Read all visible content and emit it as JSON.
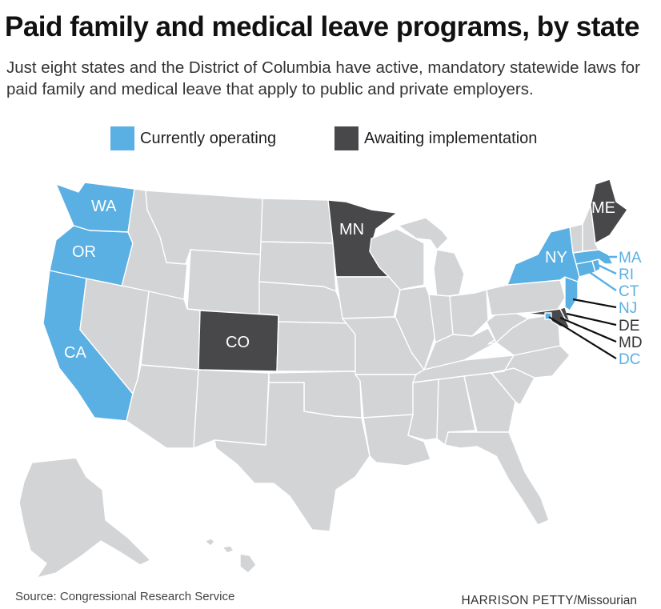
{
  "title": "Paid family and medical leave programs, by state",
  "subtitle": "Just eight states and the District of Columbia have active, mandatory statewide laws for paid family and medical leave that apply to public and private employers.",
  "legend": [
    {
      "label": "Currently operating",
      "color": "#5aafe3"
    },
    {
      "label": "Awaiting implementation",
      "color": "#48484b"
    }
  ],
  "colors": {
    "other_states": "#d3d4d6",
    "operating": "#5aafe3",
    "awaiting": "#48484b",
    "border": "#ffffff"
  },
  "states": {
    "operating": [
      "WA",
      "OR",
      "CA",
      "NY",
      "MA",
      "RI",
      "CT",
      "NJ",
      "DC"
    ],
    "awaiting": [
      "MN",
      "CO",
      "ME",
      "DE",
      "MD"
    ]
  },
  "map_labels": [
    "WA",
    "OR",
    "CA",
    "MN",
    "CO",
    "NY",
    "ME"
  ],
  "callouts": [
    {
      "label": "MA",
      "status": "operating"
    },
    {
      "label": "RI",
      "status": "operating"
    },
    {
      "label": "CT",
      "status": "operating"
    },
    {
      "label": "NJ",
      "status": "operating"
    },
    {
      "label": "DE",
      "status": "awaiting"
    },
    {
      "label": "MD",
      "status": "awaiting"
    },
    {
      "label": "DC",
      "status": "operating"
    }
  ],
  "source": "Source: Congressional Research Service",
  "credit": {
    "name": "HARRISON PETTY",
    "org": "/Missourian"
  }
}
